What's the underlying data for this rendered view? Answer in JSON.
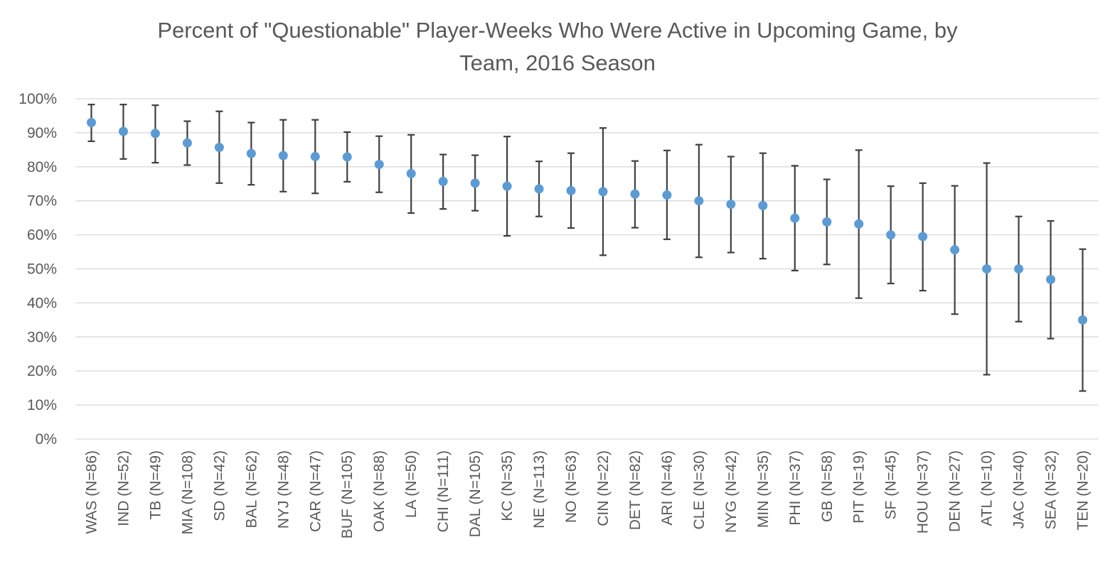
{
  "chart_data": {
    "type": "scatter",
    "title_line1": "Percent of \"Questionable\" Player-Weeks Who Were Active in Upcoming Game, by",
    "title_line2": "Team, 2016 Season",
    "xlabel": "",
    "ylabel": "",
    "ylim": [
      0,
      100
    ],
    "y_tick_labels": [
      "0%",
      "10%",
      "20%",
      "30%",
      "40%",
      "50%",
      "60%",
      "70%",
      "80%",
      "90%",
      "100%"
    ],
    "grid": true,
    "legend": "none",
    "categories": [
      "WAS (N=86)",
      "IND (N=52)",
      "TB (N=49)",
      "MIA (N=108)",
      "SD (N=42)",
      "BAL (N=62)",
      "NYJ (N=48)",
      "CAR (N=47)",
      "BUF (N=105)",
      "OAK (N=88)",
      "LA (N=50)",
      "CHI (N=111)",
      "DAL (N=105)",
      "KC (N=35)",
      "NE (N=113)",
      "NO (N=63)",
      "CIN (N=22)",
      "DET (N=82)",
      "ARI (N=46)",
      "CLE (N=30)",
      "NYG (N=42)",
      "MIN (N=35)",
      "PHI (N=37)",
      "GB (N=58)",
      "PIT (N=19)",
      "SF (N=45)",
      "HOU (N=37)",
      "DEN (N=27)",
      "ATL (N=10)",
      "JAC (N=40)",
      "SEA (N=32)",
      "TEN (N=20)"
    ],
    "series": [
      {
        "values": [
          93.0,
          90.4,
          89.8,
          87.0,
          85.7,
          83.9,
          83.3,
          83.0,
          82.9,
          80.7,
          78.0,
          75.7,
          75.2,
          74.3,
          73.5,
          73.0,
          72.7,
          72.0,
          71.7,
          70.0,
          69.0,
          68.6,
          64.9,
          63.8,
          63.2,
          60.0,
          59.5,
          55.6,
          50.0,
          50.0,
          46.9,
          35.0
        ],
        "error_low": [
          87.5,
          82.3,
          81.2,
          80.5,
          75.2,
          74.7,
          72.7,
          72.2,
          75.6,
          72.5,
          66.4,
          67.6,
          67.1,
          59.7,
          65.4,
          62.0,
          54.0,
          62.1,
          58.7,
          53.4,
          54.8,
          53.0,
          49.5,
          51.3,
          41.4,
          45.7,
          43.6,
          36.7,
          18.9,
          34.5,
          29.5,
          14.1
        ],
        "error_high": [
          98.3,
          98.3,
          98.1,
          93.4,
          96.3,
          93.0,
          93.8,
          93.8,
          90.2,
          89.0,
          89.4,
          83.6,
          83.4,
          88.9,
          81.6,
          84.0,
          91.4,
          81.7,
          84.8,
          86.5,
          83.0,
          84.0,
          80.3,
          76.3,
          84.9,
          74.3,
          75.2,
          74.4,
          81.1,
          65.4,
          64.1,
          55.8
        ]
      }
    ],
    "colors": {
      "marker": "#5b9bd5",
      "error_bar": "#404040",
      "grid": "#d9d9d9",
      "text": "#595959"
    }
  }
}
